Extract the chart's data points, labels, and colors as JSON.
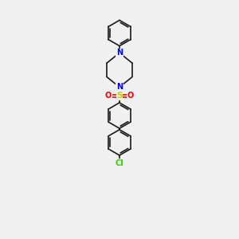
{
  "bg_color": "#f0f0f0",
  "bond_color": "#1a1a1a",
  "n_color": "#0000ff",
  "o_color": "#ff0000",
  "s_color": "#cccc00",
  "cl_color": "#33cc00",
  "bond_width": 1.2,
  "figsize": [
    3.0,
    3.0
  ],
  "dpi": 100,
  "xlim": [
    2.5,
    7.5
  ],
  "ylim": [
    0.3,
    9.8
  ]
}
